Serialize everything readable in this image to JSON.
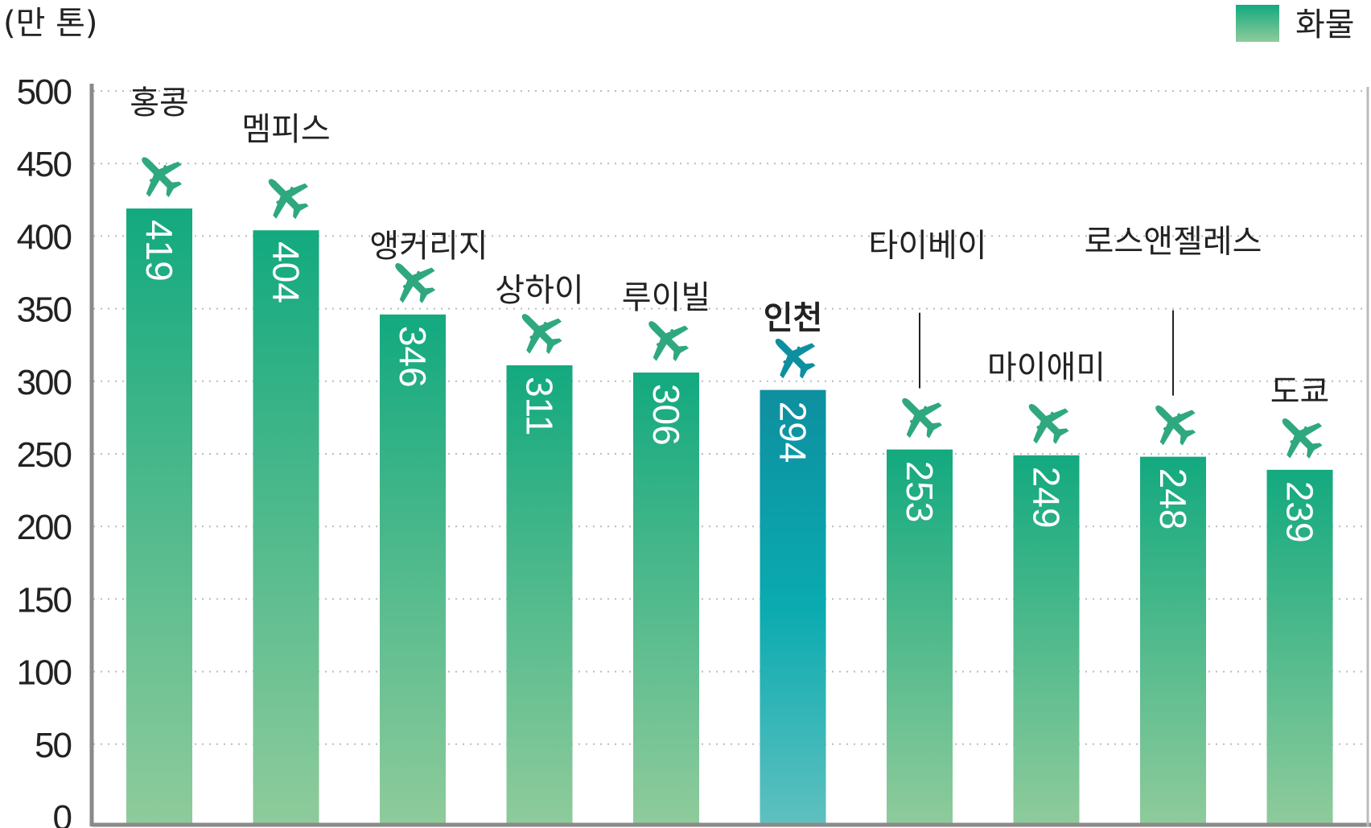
{
  "chart_data": {
    "type": "bar",
    "ylabel": "(만 톤)",
    "ylim": [
      0,
      500
    ],
    "yticks": [
      0,
      50,
      100,
      150,
      200,
      250,
      300,
      350,
      400,
      450,
      500
    ],
    "grid": true,
    "legend": {
      "position": "top-right",
      "entries": [
        "화물"
      ]
    },
    "categories": [
      "홍콩",
      "멤피스",
      "앵커리지",
      "상하이",
      "루이빌",
      "인천",
      "타이베이",
      "마이애미",
      "로스앤젤레스",
      "도쿄"
    ],
    "series": [
      {
        "name": "화물",
        "values": [
          419,
          404,
          346,
          311,
          306,
          294,
          253,
          249,
          248,
          239
        ]
      }
    ],
    "highlight": "인천",
    "colors": {
      "bar_top": "#13a97f",
      "bar_bottom": "#8fcb9b",
      "highlight_top": "#0e8fa0",
      "highlight_mid": "#0aabb0",
      "highlight_bottom": "#5fc0bf",
      "icon": "#2fa87f",
      "icon_highlight": "#0e8fa0",
      "grid": "#bbbbbb"
    },
    "icon": "airplane-icon"
  }
}
